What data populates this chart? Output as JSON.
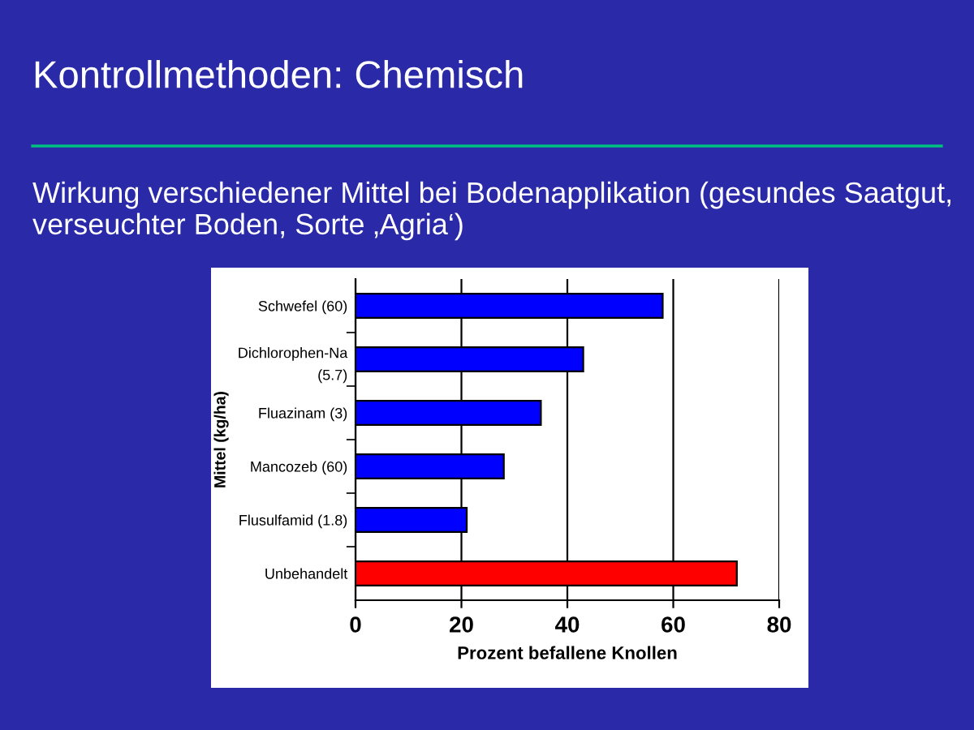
{
  "chart_data": {
    "type": "bar",
    "orientation": "horizontal",
    "title": "Kontrollmethoden: Chemisch",
    "subtitle": "Wirkung verschiedener Mittel bei Bodenapplikation (gesundes Saatgut, verseuchter Boden, Sorte ‚Agria‘)",
    "xlabel": "Prozent befallene Knollen",
    "ylabel": "Mittel (kg/ha)",
    "categories": [
      "Schwefel (60)",
      "Dichlorophen-Na\n(5.7)",
      "Fluazinam (3)",
      "Mancozeb (60)",
      "Flusulfamid (1.8)",
      "Unbehandelt"
    ],
    "values": [
      58,
      43,
      35,
      28,
      21,
      72
    ],
    "colors": [
      "#0000ff",
      "#0000ff",
      "#0000ff",
      "#0000ff",
      "#0000ff",
      "#ff0000"
    ],
    "xlim": [
      0,
      80
    ],
    "xticks": [
      0,
      20,
      40,
      60,
      80
    ],
    "grid": "x"
  }
}
